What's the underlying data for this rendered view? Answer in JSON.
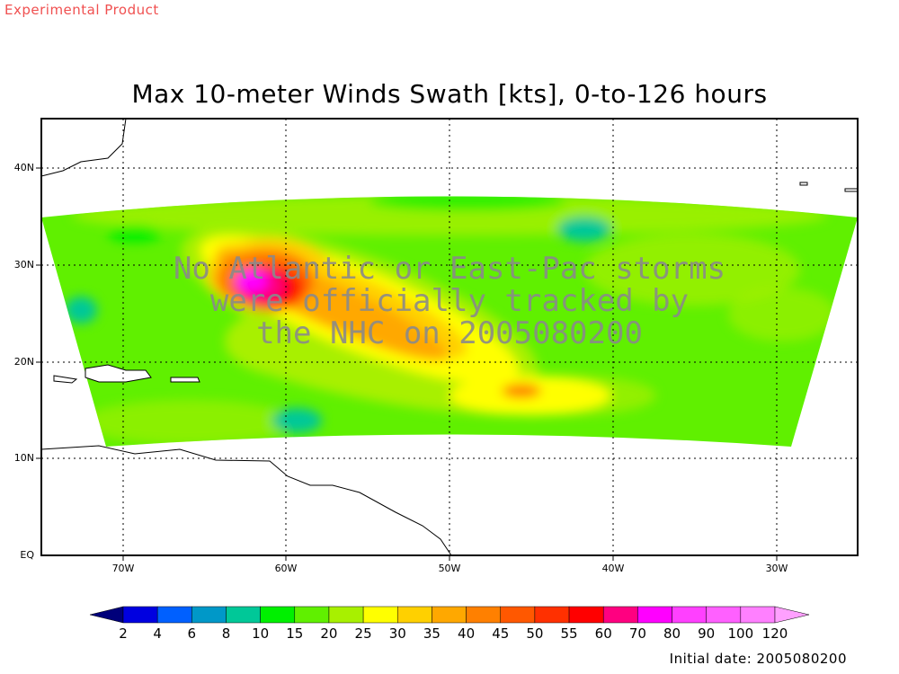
{
  "header": {
    "experimental_label": "Experimental Product",
    "title": "Max 10-meter Winds Swath [kts], 0-to-126 hours"
  },
  "map": {
    "lat_labels": [
      "40N",
      "30N",
      "20N",
      "10N",
      "EQ"
    ],
    "lon_labels": [
      "70W",
      "60W",
      "50W",
      "40W",
      "30W"
    ],
    "notice": {
      "line1": "No Atlantic or East-Pac storms",
      "line2": "were officially tracked by",
      "line3": "the NHC on 2005080200"
    }
  },
  "colorbar": {
    "labels": [
      "2",
      "4",
      "6",
      "8",
      "10",
      "15",
      "20",
      "25",
      "30",
      "35",
      "40",
      "45",
      "50",
      "55",
      "60",
      "70",
      "80",
      "90",
      "100",
      "120"
    ],
    "colors": [
      "#00007a",
      "#0000e0",
      "#0060ff",
      "#0098c8",
      "#00c898",
      "#00f000",
      "#60f000",
      "#a8f000",
      "#ffff00",
      "#ffd000",
      "#ffa800",
      "#ff8000",
      "#ff5800",
      "#ff3000",
      "#ff0000",
      "#ff0080",
      "#ff00ff",
      "#ff40ff",
      "#ff60ff",
      "#ff80ff",
      "#ffa0ff"
    ]
  },
  "footer": {
    "initial_date": "Initial date: 2005080200"
  }
}
